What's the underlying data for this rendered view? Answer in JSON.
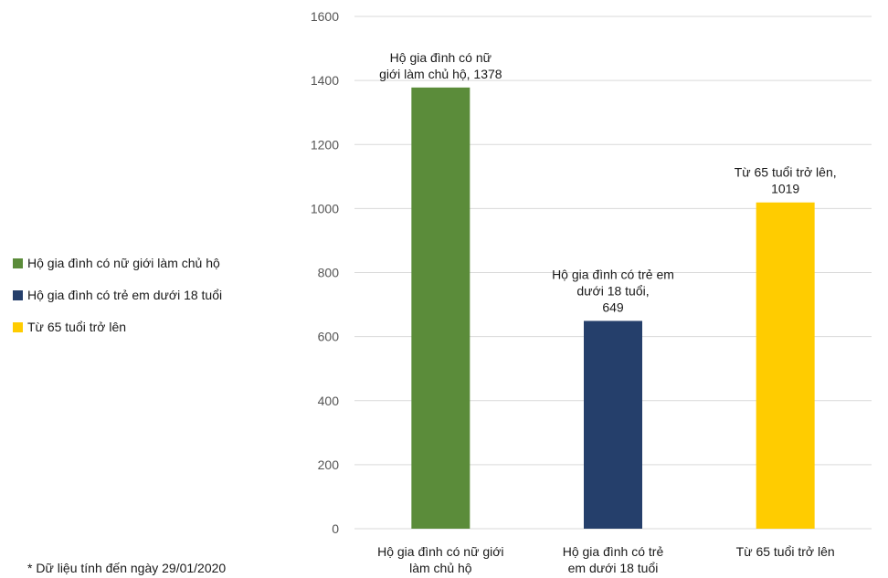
{
  "chart_data": {
    "type": "bar",
    "categories": [
      [
        "Hộ gia đình có nữ giới",
        "làm chủ hộ"
      ],
      [
        "Hộ gia đình có trẻ",
        "em dưới 18 tuổi"
      ],
      [
        "Từ 65 tuổi trở lên"
      ]
    ],
    "values": [
      1378,
      649,
      1019
    ],
    "data_labels": [
      [
        "Hộ gia đình có nữ",
        "giới làm chủ hộ, 1378"
      ],
      [
        "Hộ gia đình có trẻ em",
        "dưới 18 tuổi,",
        "649"
      ],
      [
        "Từ 65 tuổi trở lên,",
        "1019"
      ]
    ],
    "colors": [
      "#5b8c3a",
      "#253f6b",
      "#ffcc00"
    ],
    "ylim": [
      0,
      1600
    ],
    "yticks": [
      0,
      200,
      400,
      600,
      800,
      1000,
      1200,
      1400,
      1600
    ],
    "grid": true,
    "legend_placement": "left",
    "legend": [
      {
        "label": "Hộ gia đình có nữ giới làm chủ hộ",
        "color": "#5b8c3a"
      },
      {
        "label": "Hộ gia đình có trẻ em dưới 18 tuổi",
        "color": "#253f6b"
      },
      {
        "label": "Từ 65 tuổi trở lên",
        "color": "#ffcc00"
      }
    ]
  },
  "footnote": "* Dữ liệu tính đến ngày 29/01/2020"
}
